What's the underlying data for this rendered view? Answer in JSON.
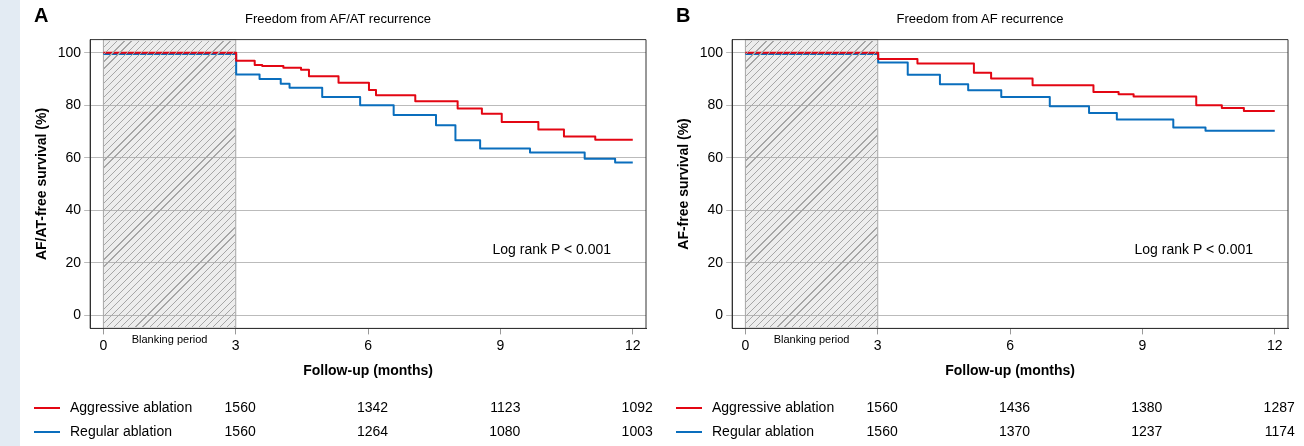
{
  "chart_data": [
    {
      "type": "step",
      "title": "Freedom from AF/AT recurrence",
      "xlabel": "Follow-up (months)",
      "ylabel": "AF/AT-free survival (%)",
      "xlim": [
        -0.3,
        12.3
      ],
      "xticks": [
        0,
        3,
        6,
        9,
        12
      ],
      "ylim": [
        -5,
        105
      ],
      "yticks": [
        0,
        20,
        40,
        60,
        80,
        100
      ],
      "grid": "y",
      "legend": "bottom",
      "bands": [
        {
          "axis": "x",
          "from": 0,
          "to": 3,
          "label": "Blanking period",
          "color": "#a6a6a6"
        }
      ],
      "annotations": [
        "A",
        "Log rank P < 0.001",
        "1560",
        "1342",
        "1123",
        "1092",
        "1560",
        "1264",
        "1080",
        "1003"
      ],
      "series": [
        {
          "name": "Aggressive ablation",
          "color": "#e30613",
          "x": [
            0,
            3.01,
            3.43,
            3.6,
            4.08,
            4.48,
            4.66,
            5.33,
            6.02,
            6.18,
            7.07,
            8.03,
            8.58,
            9.03,
            9.86,
            10.44,
            11.15,
            12
          ],
          "values": [
            100,
            96.9,
            95.3,
            94.9,
            94.3,
            93.5,
            91.0,
            88.6,
            85.8,
            83.8,
            81.5,
            78.8,
            76.8,
            73.6,
            70.8,
            68.1,
            66.9,
            66.9
          ]
        },
        {
          "name": "Regular ablation",
          "color": "#0a6ebd",
          "x": [
            0,
            3.01,
            3.54,
            4.02,
            4.22,
            4.96,
            5.82,
            6.58,
            7.54,
            7.98,
            8.54,
            9.67,
            10.91,
            11.6,
            12
          ],
          "values": [
            99.5,
            91.7,
            90.0,
            88.2,
            86.7,
            83.1,
            80.0,
            76.3,
            72.4,
            66.7,
            63.5,
            62.0,
            59.6,
            58.2,
            58.2
          ]
        }
      ]
    },
    {
      "type": "step",
      "title": "Freedom from AF recurrence",
      "xlabel": "Follow-up (months)",
      "ylabel": "AF-free survival (%)",
      "xlim": [
        -0.3,
        12.3
      ],
      "xticks": [
        0,
        3,
        6,
        9,
        12
      ],
      "ylim": [
        -5,
        105
      ],
      "yticks": [
        0,
        20,
        40,
        60,
        80,
        100
      ],
      "grid": "y",
      "legend": "bottom",
      "bands": [
        {
          "axis": "x",
          "from": 0,
          "to": 3,
          "label": "Blanking period",
          "color": "#a6a6a6"
        }
      ],
      "annotations": [
        "B",
        "Log rank P < 0.001",
        "1560",
        "1436",
        "1380",
        "1287",
        "1560",
        "1370",
        "1237",
        "1174"
      ],
      "series": [
        {
          "name": "Aggressive ablation",
          "color": "#e30613",
          "x": [
            0,
            3.01,
            3.9,
            5.18,
            5.57,
            6.51,
            7.89,
            8.46,
            8.8,
            10.22,
            10.8,
            11.3,
            12
          ],
          "values": [
            100,
            97.6,
            95.9,
            92.4,
            90.2,
            87.6,
            85.0,
            84.2,
            83.3,
            80.0,
            78.9,
            77.8,
            77.8
          ]
        },
        {
          "name": "Regular ablation",
          "color": "#0a6ebd",
          "x": [
            0,
            3.01,
            3.68,
            4.41,
            5.05,
            5.8,
            6.9,
            7.79,
            8.42,
            9.7,
            10.43,
            12
          ],
          "values": [
            99.5,
            96.3,
            91.6,
            88.0,
            85.7,
            83.1,
            79.6,
            77.0,
            74.6,
            71.5,
            70.3,
            70.3
          ]
        }
      ]
    }
  ]
}
